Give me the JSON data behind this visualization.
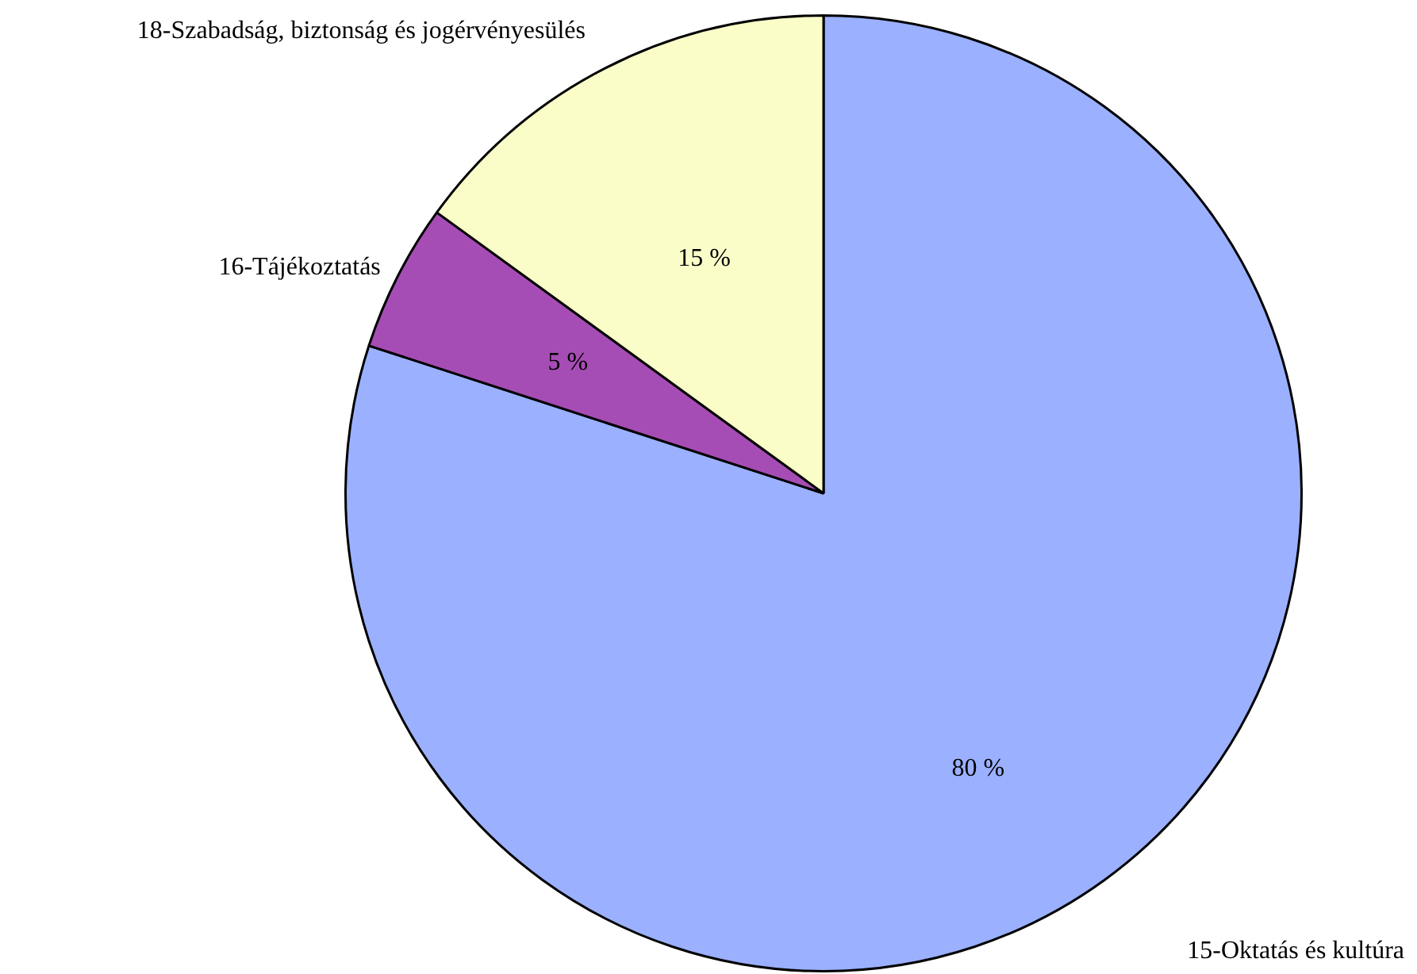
{
  "chart_data": {
    "type": "pie",
    "categories": [
      "15-Oktatás és kultúra",
      "16-Tájékoztatás",
      "18-Szabadság, biztonság és jogérvényesülés"
    ],
    "values": [
      80,
      5,
      15
    ],
    "colors": [
      "#9bb0ff",
      "#a64db5",
      "#fafdc8"
    ],
    "value_labels": [
      "80 %",
      "5 %",
      "15 %"
    ],
    "legend": false
  }
}
